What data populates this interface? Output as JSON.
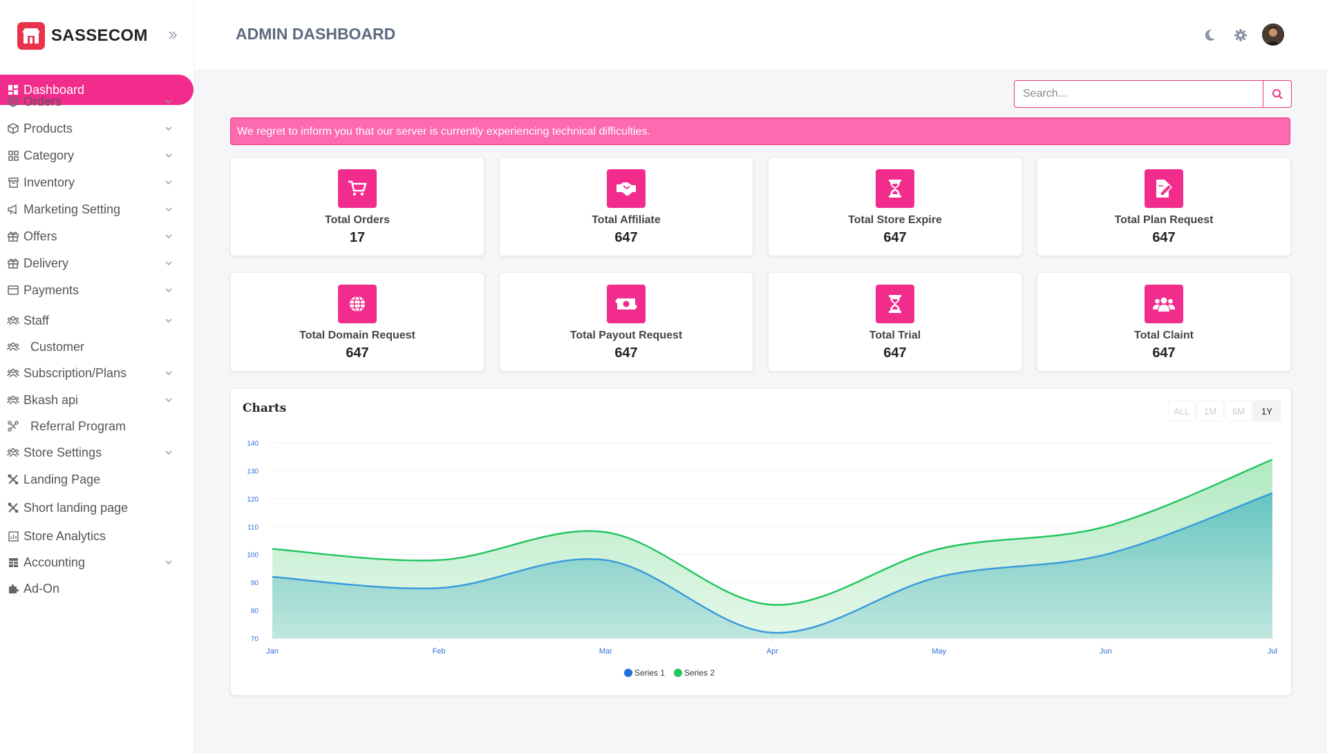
{
  "brand": {
    "name": "SASSECOM"
  },
  "header": {
    "title": "ADMIN DASHBOARD"
  },
  "search": {
    "placeholder": "Search..."
  },
  "alert": {
    "message": "We regret to inform you that our server is currently experiencing technical difficulties."
  },
  "sidebar": {
    "items": [
      {
        "label": "Dashboard",
        "icon": "dashboard-icon",
        "active": true
      },
      {
        "label": "Orders",
        "icon": "box-icon",
        "chevron": true
      },
      {
        "label": "Products",
        "icon": "box-icon",
        "chevron": true
      },
      {
        "label": "Category",
        "icon": "grid-icon",
        "chevron": true
      },
      {
        "label": "Inventory",
        "icon": "archive-icon",
        "chevron": true
      },
      {
        "label": "Marketing Setting",
        "icon": "megaphone-icon",
        "chevron": true
      },
      {
        "label": "Offers",
        "icon": "gift-icon",
        "chevron": true
      },
      {
        "label": "Delivery",
        "icon": "gift-icon",
        "chevron": true
      },
      {
        "label": "Payments",
        "icon": "card-icon",
        "chevron": true
      },
      {
        "label": "Staff",
        "icon": "users-icon",
        "chevron": true
      },
      {
        "label": "Customer",
        "icon": "users-icon",
        "chevron": false
      },
      {
        "label": "Subscription/Plans",
        "icon": "users-icon",
        "chevron": true
      },
      {
        "label": "Bkash api",
        "icon": "users-icon",
        "chevron": true
      },
      {
        "label": "Referral Program",
        "icon": "network-icon",
        "chevron": false
      },
      {
        "label": "Store Settings",
        "icon": "users-icon",
        "chevron": true
      },
      {
        "label": "Landing Page",
        "icon": "tools-icon",
        "chevron": false
      },
      {
        "label": "Short landing page",
        "icon": "tools-icon",
        "chevron": false
      },
      {
        "label": "Store Analytics",
        "icon": "chart-icon",
        "chevron": false
      },
      {
        "label": "Accounting",
        "icon": "table-icon",
        "chevron": true
      },
      {
        "label": "Ad-On",
        "icon": "puzzle-icon",
        "chevron": false
      }
    ]
  },
  "stats": [
    {
      "label": "Total Orders",
      "value": "17",
      "icon": "cart-icon"
    },
    {
      "label": "Total Affiliate",
      "value": "647",
      "icon": "handshake-icon"
    },
    {
      "label": "Total Store Expire",
      "value": "647",
      "icon": "hourglass-icon"
    },
    {
      "label": "Total Plan Request",
      "value": "647",
      "icon": "file-edit-icon"
    },
    {
      "label": "Total Domain Request",
      "value": "647",
      "icon": "globe-icon"
    },
    {
      "label": "Total Payout Request",
      "value": "647",
      "icon": "money-icon"
    },
    {
      "label": "Total Trial",
      "value": "647",
      "icon": "hourglass-icon"
    },
    {
      "label": "Total Claint",
      "value": "647",
      "icon": "group-icon"
    }
  ],
  "charts": {
    "title": "Charts",
    "ranges": [
      "ALL",
      "1M",
      "6M",
      "1Y"
    ],
    "active_range": "1Y"
  },
  "colors": {
    "accent": "#f22c8c",
    "alert_bg": "#fd6aaf",
    "series1": "#3a9bdc",
    "series2": "#22c55e"
  },
  "chart_data": {
    "type": "area",
    "categories": [
      "Jan",
      "Feb",
      "Mar",
      "Apr",
      "May",
      "Jun",
      "Jul"
    ],
    "series": [
      {
        "name": "Series 1",
        "values": [
          92,
          88,
          98,
          72,
          92,
          100,
          122
        ]
      },
      {
        "name": "Series 2",
        "values": [
          102,
          98,
          108,
          82,
          102,
          110,
          134
        ]
      }
    ],
    "yticks": [
      "70",
      "80",
      "90",
      "100",
      "110",
      "120",
      "130",
      "140"
    ],
    "ylim": [
      70,
      140
    ],
    "legend": "bottom-center",
    "grid": true
  }
}
